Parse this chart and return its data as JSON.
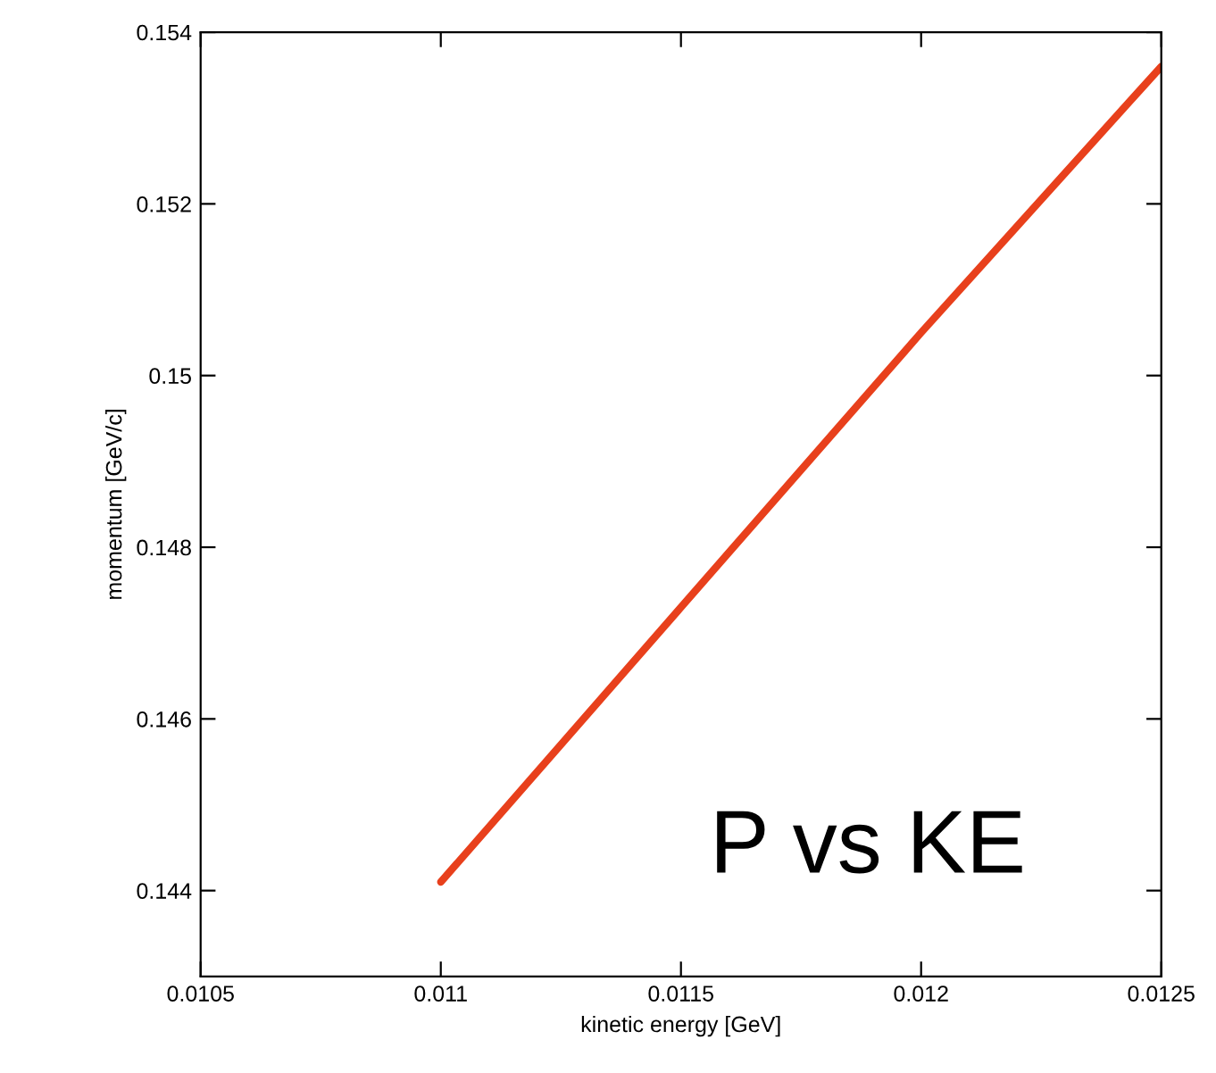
{
  "chart_data": {
    "type": "line",
    "xlabel": "kinetic energy [GeV]",
    "ylabel": "momentum [GeV/c]",
    "x": [
      0.011,
      0.0115,
      0.012,
      0.0125
    ],
    "series": [
      {
        "color": "#e8401c",
        "values": [
          0.1441,
          0.1473,
          0.1505,
          0.1536
        ]
      }
    ],
    "xlim": [
      0.0105,
      0.0125
    ],
    "xticks": [
      0.0105,
      0.011,
      0.0115,
      0.012,
      0.0125
    ],
    "ylim": [
      0.143,
      0.154
    ],
    "yticks": [
      0.144,
      0.146,
      0.148,
      0.15,
      0.152,
      0.154
    ],
    "annotations": [
      "P vs KE"
    ],
    "grid": false,
    "legend": false,
    "marker": "none",
    "line_style": "solid"
  }
}
